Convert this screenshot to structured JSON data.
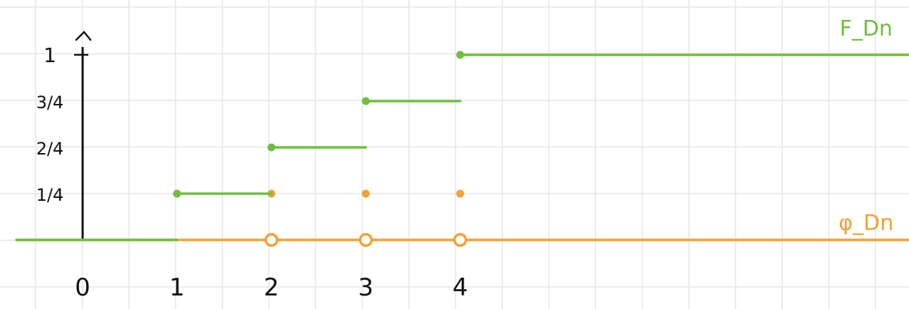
{
  "chart_data": {
    "type": "line",
    "title": "",
    "xlabel": "",
    "ylabel": "",
    "xlim": [
      -0.7,
      8.8
    ],
    "ylim": [
      -0.45,
      1.1
    ],
    "grid": true,
    "x_ticks": [
      {
        "value": 0,
        "label": "0"
      },
      {
        "value": 1,
        "label": "1"
      },
      {
        "value": 2,
        "label": "2"
      },
      {
        "value": 3,
        "label": "3"
      },
      {
        "value": 4,
        "label": "4"
      }
    ],
    "y_ticks": [
      {
        "value": 0.25,
        "label": "1/4"
      },
      {
        "value": 0.5,
        "label": "2/4"
      },
      {
        "value": 0.75,
        "label": "3/4"
      },
      {
        "value": 1,
        "label": "1"
      }
    ],
    "series": [
      {
        "name": "F_Dn",
        "color": "#6dbf3d",
        "segments": [
          {
            "x": [
              -0.7,
              1
            ],
            "y": [
              0,
              0
            ]
          },
          {
            "x": [
              1,
              2
            ],
            "y": [
              0.25,
              0.25
            ]
          },
          {
            "x": [
              2,
              3
            ],
            "y": [
              0.5,
              0.5
            ]
          },
          {
            "x": [
              3,
              4
            ],
            "y": [
              0.75,
              0.75
            ]
          },
          {
            "x": [
              4,
              8.8
            ],
            "y": [
              1,
              1
            ]
          }
        ],
        "filled_points": [
          {
            "x": 1,
            "y": 0.25
          },
          {
            "x": 2,
            "y": 0.5
          },
          {
            "x": 3,
            "y": 0.75
          },
          {
            "x": 4,
            "y": 1
          }
        ]
      },
      {
        "name": "φ_Dn",
        "color": "#f4a035",
        "segments": [
          {
            "x": [
              -0.7,
              8.8
            ],
            "y": [
              0,
              0
            ]
          }
        ],
        "filled_points": [
          {
            "x": 1,
            "y": 0.25
          },
          {
            "x": 2,
            "y": 0.25
          },
          {
            "x": 3,
            "y": 0.25
          },
          {
            "x": 4,
            "y": 0.25
          }
        ],
        "open_points": [
          {
            "x": 2,
            "y": 0
          },
          {
            "x": 3,
            "y": 0
          },
          {
            "x": 4,
            "y": 0
          }
        ]
      }
    ],
    "annotations": [
      {
        "text": "F_Dn",
        "series": "F_Dn",
        "anchor_x": 8.3,
        "anchor_y": 1.15
      },
      {
        "text": "φ_Dn",
        "series": "φ_Dn",
        "anchor_x": 8.3,
        "anchor_y": 0.1
      }
    ]
  }
}
